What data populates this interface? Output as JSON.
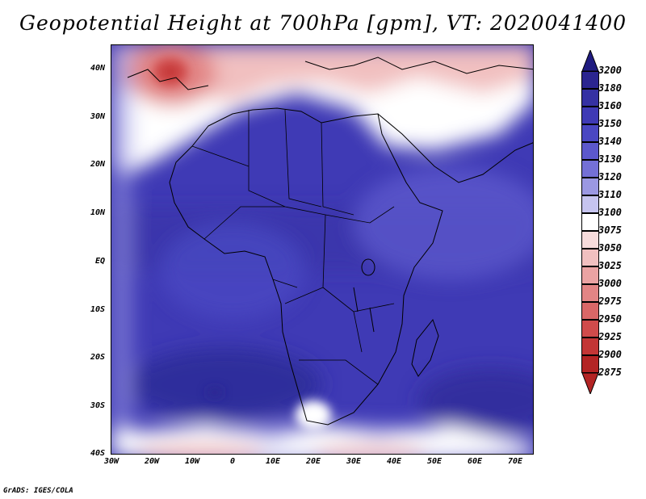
{
  "title": "Geopotential Height at 700hPa [gpm], VT: 2020041400",
  "credit": "GrADS: IGES/COLA",
  "map": {
    "lat_labels": [
      "40N",
      "30N",
      "20N",
      "10N",
      "EQ",
      "10S",
      "20S",
      "30S",
      "40S"
    ],
    "lon_labels": [
      "30W",
      "20W",
      "10W",
      "0",
      "10E",
      "20E",
      "30E",
      "40E",
      "50E",
      "60E",
      "70E"
    ],
    "extent": {
      "lon": [
        -30,
        75
      ],
      "lat": [
        -40,
        45
      ]
    }
  },
  "colorbar": {
    "top_value": "3200",
    "levels": [
      {
        "label": "3180",
        "color": "#2b2590"
      },
      {
        "label": "3160",
        "color": "#3531a3"
      },
      {
        "label": "3150",
        "color": "#3f3ab5"
      },
      {
        "label": "3140",
        "color": "#4a47c2"
      },
      {
        "label": "3130",
        "color": "#5c58cc"
      },
      {
        "label": "3120",
        "color": "#7470d6"
      },
      {
        "label": "3110",
        "color": "#9b98e2"
      },
      {
        "label": "3100",
        "color": "#c6c4ef"
      },
      {
        "label": "3075",
        "color": "#ffffff"
      },
      {
        "label": "3050",
        "color": "#f7dcdc"
      },
      {
        "label": "3025",
        "color": "#f1c0c0"
      },
      {
        "label": "3000",
        "color": "#eaa3a3"
      },
      {
        "label": "2975",
        "color": "#e28585"
      },
      {
        "label": "2950",
        "color": "#d96767"
      },
      {
        "label": "2925",
        "color": "#d04b4b"
      },
      {
        "label": "2900",
        "color": "#c33636"
      },
      {
        "label": "2875",
        "color": "#b32424"
      }
    ]
  }
}
